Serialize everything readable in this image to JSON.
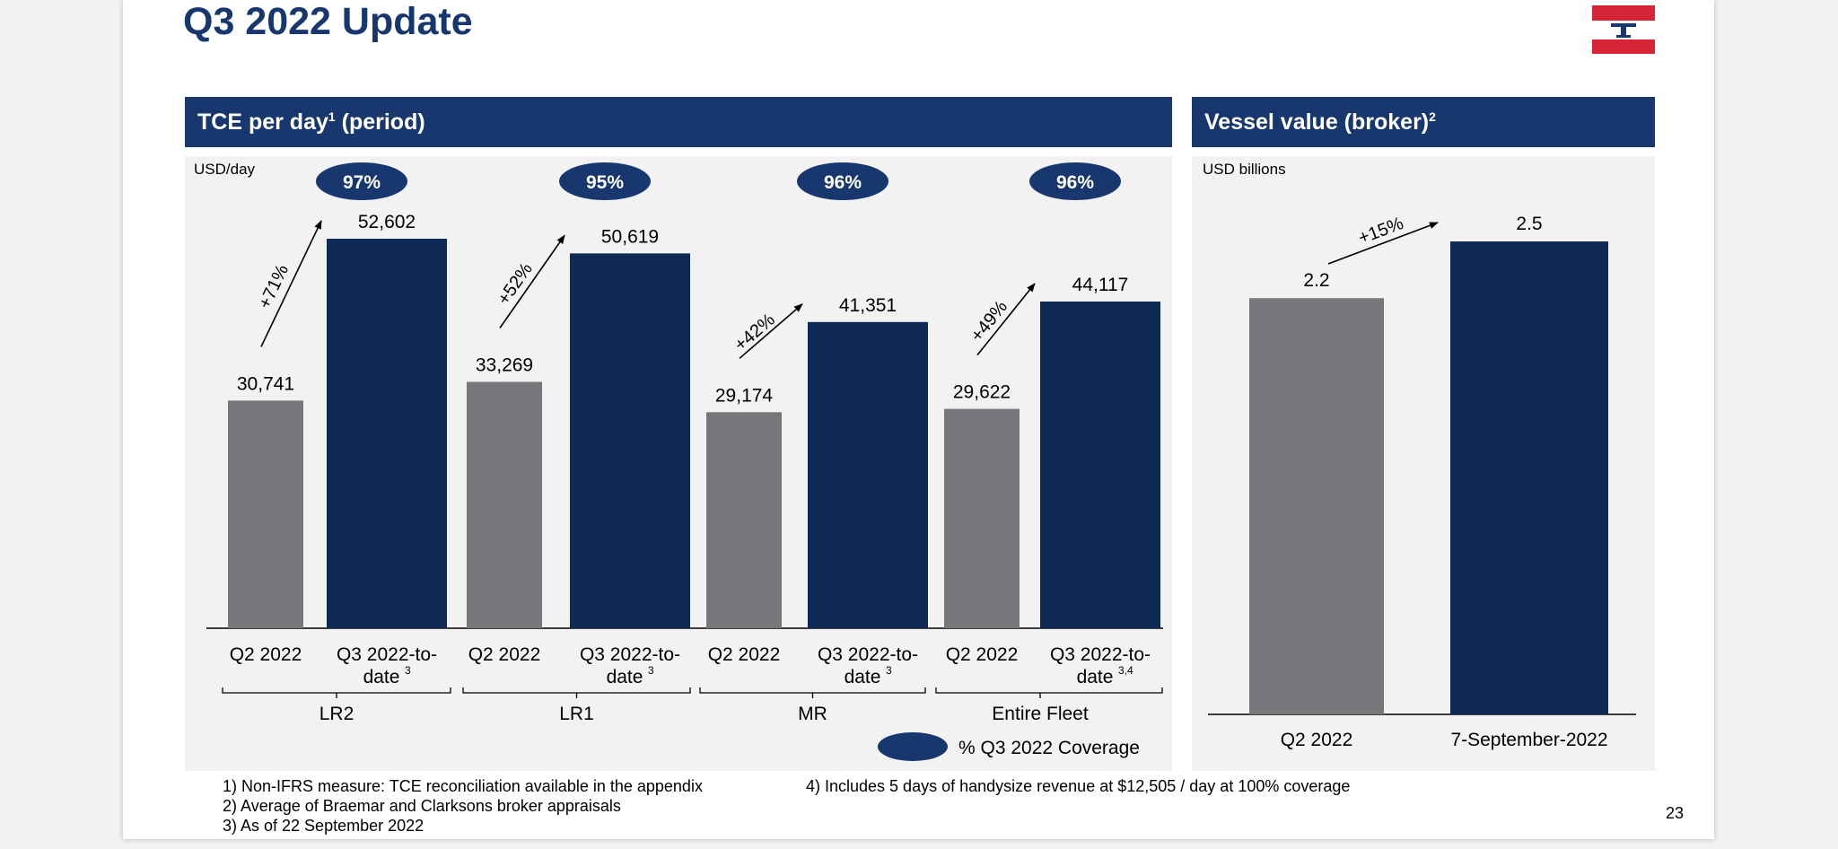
{
  "title": "Q3 2022 Update",
  "page_number": "23",
  "colors": {
    "navy": "#0e2a55",
    "grey": "#77777b",
    "header_blue": "#17376e",
    "logo_red": "#d62535"
  },
  "left_panel": {
    "header": "TCE per day",
    "header_sup": "1",
    "header_suffix": " (period)",
    "unit": "USD/day",
    "legend_label": "% Q3 2022 Coverage"
  },
  "right_panel": {
    "header": "Vessel value (broker)",
    "header_sup": "2",
    "unit": "USD billions"
  },
  "chart_data": [
    {
      "type": "bar",
      "ylabel": "USD/day",
      "ylim": [
        0,
        60000
      ],
      "groups": [
        {
          "name": "LR2",
          "q2": 30741,
          "q3": 52602,
          "q2_label": "30,741",
          "q3_label": "52,602",
          "change": "+71%",
          "coverage": "97%",
          "q3_sup": "3"
        },
        {
          "name": "LR1",
          "q2": 33269,
          "q3": 50619,
          "q2_label": "33,269",
          "q3_label": "50,619",
          "change": "+52%",
          "coverage": "95%",
          "q3_sup": "3"
        },
        {
          "name": "MR",
          "q2": 29174,
          "q3": 41351,
          "q2_label": "29,174",
          "q3_label": "41,351",
          "change": "+42%",
          "coverage": "96%",
          "q3_sup": "3"
        },
        {
          "name": "Entire Fleet",
          "q2": 29622,
          "q3": 44117,
          "q2_label": "29,622",
          "q3_label": "44,117",
          "change": "+49%",
          "coverage": "96%",
          "q3_sup": "3,4"
        }
      ],
      "q2_category": "Q2 2022",
      "q3_category_line1": "Q3 2022-to-",
      "q3_category_line2": "date"
    },
    {
      "type": "bar",
      "ylabel": "USD billions",
      "ylim": [
        0,
        2.8
      ],
      "categories": [
        "Q2 2022",
        "7-September-2022"
      ],
      "values": [
        2.2,
        2.5
      ],
      "labels": [
        "2.2",
        "2.5"
      ],
      "change": "+15%"
    }
  ],
  "footnotes": {
    "left": [
      "1) Non-IFRS measure: TCE reconciliation available in the appendix",
      "2) Average of Braemar and Clarksons broker appraisals",
      "3) As of 22 September 2022"
    ],
    "right": [
      "4) Includes 5 days of handysize revenue at $12,505 / day at 100% coverage"
    ]
  }
}
